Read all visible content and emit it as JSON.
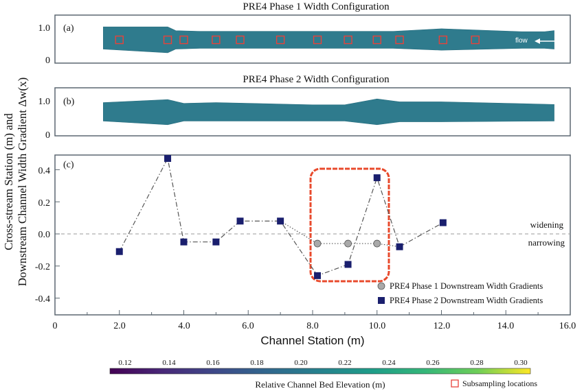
{
  "figure": {
    "ylabel_line1": "Cross-stream Station (m) and",
    "ylabel_line2": "Downstream Channel Width Gradient Δw(x)",
    "xlabel": "Channel Station (m)"
  },
  "panels": {
    "a": {
      "title": "PRE4 Phase 1 Width Configuration",
      "label": "(a)",
      "flow_label": "flow",
      "yticks": [
        "1.0",
        "0"
      ],
      "ylim": [
        0,
        1.3
      ],
      "outline_top": [
        [
          1.5,
          0.98
        ],
        [
          3.5,
          0.98
        ],
        [
          3.75,
          0.88
        ],
        [
          4.5,
          0.86
        ],
        [
          8.5,
          0.86
        ],
        [
          10.5,
          0.86
        ],
        [
          12.0,
          0.93
        ],
        [
          14.5,
          0.85
        ],
        [
          15.2,
          0.85
        ],
        [
          15.5,
          0.88
        ]
      ],
      "outline_bottom": [
        [
          1.5,
          0.38
        ],
        [
          3.5,
          0.28
        ],
        [
          3.75,
          0.38
        ],
        [
          4.5,
          0.4
        ],
        [
          8.5,
          0.4
        ],
        [
          10.5,
          0.4
        ],
        [
          12.0,
          0.35
        ],
        [
          14.5,
          0.4
        ],
        [
          15.2,
          0.4
        ],
        [
          15.5,
          0.38
        ]
      ],
      "subsample_x": [
        2.0,
        3.5,
        4.0,
        5.0,
        5.75,
        7.0,
        8.15,
        9.1,
        10.0,
        10.7,
        12.05,
        13.05
      ],
      "subsample_y": 0.63
    },
    "b": {
      "title": "PRE4 Phase 2 Width Configuration",
      "label": "(b)",
      "yticks": [
        "1.0",
        "0"
      ],
      "ylim": [
        0,
        1.3
      ],
      "outline_top": [
        [
          1.5,
          0.9
        ],
        [
          3.5,
          0.98
        ],
        [
          4.0,
          0.88
        ],
        [
          5.0,
          0.9
        ],
        [
          8.0,
          0.84
        ],
        [
          9.0,
          0.84
        ],
        [
          10.0,
          1.0
        ],
        [
          10.7,
          0.92
        ],
        [
          12.0,
          0.92
        ],
        [
          15.5,
          0.85
        ]
      ],
      "outline_bottom": [
        [
          1.5,
          0.4
        ],
        [
          3.5,
          0.3
        ],
        [
          4.0,
          0.4
        ],
        [
          5.0,
          0.4
        ],
        [
          8.0,
          0.4
        ],
        [
          9.0,
          0.4
        ],
        [
          10.0,
          0.3
        ],
        [
          10.7,
          0.38
        ],
        [
          12.0,
          0.38
        ],
        [
          15.5,
          0.4
        ]
      ]
    },
    "c": {
      "label": "(c)",
      "widening_label": "widening",
      "narrowing_label": "narrowing",
      "legend": [
        {
          "label": "PRE4 Phase 1 Downstream Width Gradients"
        },
        {
          "label": "PRE4 Phase 2 Downstream Width Gradients"
        }
      ]
    }
  },
  "xticks": [
    "0",
    "2.0",
    "4.0",
    "6.0",
    "8.0",
    "10.0",
    "12.0",
    "14.0",
    "16.0"
  ],
  "yticks_c": [
    "0.4",
    "0.2",
    "0.0",
    "-0.2",
    "-0.4"
  ],
  "colorbar": {
    "label": "Relative Channel Bed Elevation (m)",
    "ticks": [
      "0.12",
      "0.14",
      "0.16",
      "0.18",
      "0.20",
      "0.22",
      "0.24",
      "0.26",
      "0.28",
      "0.30"
    ],
    "range": [
      0.12,
      0.3
    ],
    "colormap": "viridis",
    "subsample_legend": "Subsampling locations"
  },
  "colors": {
    "channel_fill": "#2f7b8d",
    "subsample_box": "#e8423a",
    "phase2_marker": "#1a1f6e",
    "phase1_marker": "#a9a9a9",
    "highlight_box": "#e84a2c",
    "axis_frame": "#5b6770"
  },
  "chart_data": {
    "type": "scatter",
    "title": "",
    "xlabel": "Channel Station (m)",
    "ylabel": "Cross-stream Station (m) and Downstream Channel Width Gradient Δw(x)",
    "xlim": [
      0,
      16
    ],
    "ylim": [
      -0.5,
      0.5
    ],
    "series": [
      {
        "name": "PRE4 Phase 1 Downstream Width Gradients",
        "points": [
          [
            8.15,
            -0.06
          ],
          [
            9.1,
            -0.06
          ],
          [
            10.0,
            -0.06
          ]
        ]
      },
      {
        "name": "PRE4 Phase 2 Downstream Width Gradients",
        "points": [
          [
            2.0,
            -0.11
          ],
          [
            3.5,
            0.47
          ],
          [
            4.0,
            -0.05
          ],
          [
            5.0,
            -0.05
          ],
          [
            5.75,
            0.08
          ],
          [
            7.0,
            0.08
          ],
          [
            8.15,
            -0.26
          ],
          [
            9.1,
            -0.19
          ],
          [
            10.0,
            0.35
          ],
          [
            10.7,
            -0.08
          ],
          [
            12.05,
            0.07
          ]
        ]
      }
    ],
    "phase1_shared_path": [
      [
        7.0,
        0.08
      ],
      [
        8.15,
        -0.06
      ],
      [
        9.1,
        -0.06
      ],
      [
        10.0,
        -0.06
      ],
      [
        10.7,
        -0.08
      ]
    ],
    "reference_line_y": 0.0,
    "highlight_xrange": [
      8.15,
      10.0
    ]
  }
}
